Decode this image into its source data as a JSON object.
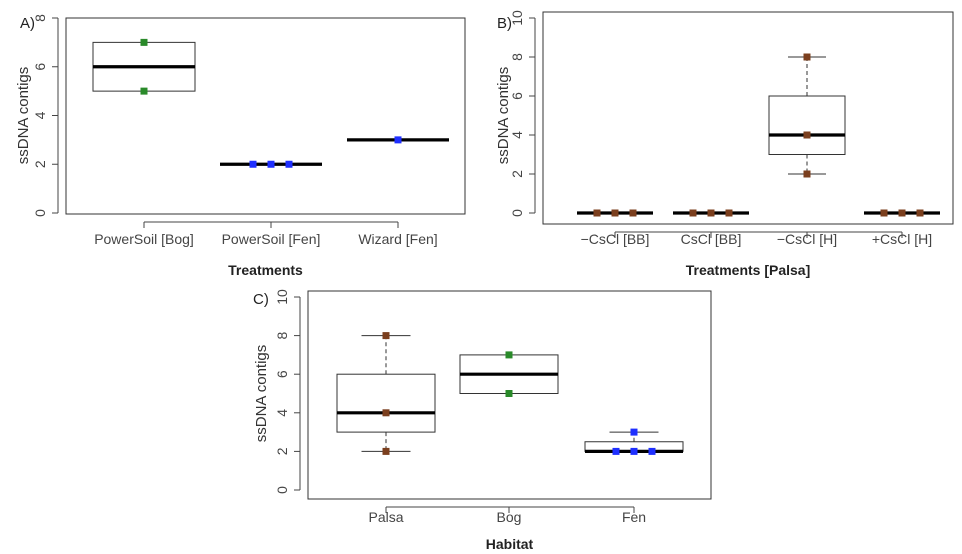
{
  "chart_data": [
    {
      "panel_label": "A)",
      "type": "box",
      "xlabel": "Treatments",
      "ylabel": "ssDNA contigs",
      "ylim": [
        0,
        8
      ],
      "yticks": [
        0,
        2,
        4,
        6,
        8
      ],
      "categories": [
        "PowerSoil [Bog]",
        "PowerSoil [Fen]",
        "Wizard [Fen]"
      ],
      "boxes": [
        {
          "min": 5,
          "q1": 5,
          "median": 6,
          "q3": 7,
          "max": 7
        },
        {
          "min": 2,
          "q1": 2,
          "median": 2,
          "q3": 2,
          "max": 2
        },
        {
          "min": 3,
          "q1": 3,
          "median": 3,
          "q3": 3,
          "max": 3
        }
      ],
      "points": [
        {
          "cat": 0,
          "y": 7,
          "color": "#2a8a2a"
        },
        {
          "cat": 0,
          "y": 5,
          "color": "#2a8a2a"
        },
        {
          "cat": 1,
          "y": 2,
          "color": "#1e2fff",
          "offset": -1
        },
        {
          "cat": 1,
          "y": 2,
          "color": "#1e2fff",
          "offset": 0
        },
        {
          "cat": 1,
          "y": 2,
          "color": "#1e2fff",
          "offset": 1
        },
        {
          "cat": 2,
          "y": 3,
          "color": "#1e2fff"
        }
      ]
    },
    {
      "panel_label": "B)",
      "type": "box",
      "xlabel": "Treatments [Palsa]",
      "ylabel": "ssDNA contigs",
      "ylim": [
        0,
        10
      ],
      "yticks": [
        0,
        2,
        4,
        6,
        8,
        10
      ],
      "categories": [
        "−CsCl [BB]",
        "CsCl [BB]",
        "−CsCl [H]",
        "+CsCl [H]"
      ],
      "boxes": [
        {
          "min": 0,
          "q1": 0,
          "median": 0,
          "q3": 0,
          "max": 0
        },
        {
          "min": 0,
          "q1": 0,
          "median": 0,
          "q3": 0,
          "max": 0
        },
        {
          "min": 2,
          "q1": 3,
          "median": 4,
          "q3": 6,
          "max": 8
        },
        {
          "min": 0,
          "q1": 0,
          "median": 0,
          "q3": 0,
          "max": 0
        }
      ],
      "points": [
        {
          "cat": 0,
          "y": 0,
          "color": "#7b3f1e",
          "offset": -1
        },
        {
          "cat": 0,
          "y": 0,
          "color": "#7b3f1e",
          "offset": 0
        },
        {
          "cat": 0,
          "y": 0,
          "color": "#7b3f1e",
          "offset": 1
        },
        {
          "cat": 1,
          "y": 0,
          "color": "#7b3f1e",
          "offset": -1
        },
        {
          "cat": 1,
          "y": 0,
          "color": "#7b3f1e",
          "offset": 0
        },
        {
          "cat": 1,
          "y": 0,
          "color": "#7b3f1e",
          "offset": 1
        },
        {
          "cat": 2,
          "y": 8,
          "color": "#7b3f1e"
        },
        {
          "cat": 2,
          "y": 4,
          "color": "#7b3f1e"
        },
        {
          "cat": 2,
          "y": 2,
          "color": "#7b3f1e"
        },
        {
          "cat": 3,
          "y": 0,
          "color": "#7b3f1e",
          "offset": -1
        },
        {
          "cat": 3,
          "y": 0,
          "color": "#7b3f1e",
          "offset": 0
        },
        {
          "cat": 3,
          "y": 0,
          "color": "#7b3f1e",
          "offset": 1
        }
      ]
    },
    {
      "panel_label": "C)",
      "type": "box",
      "xlabel": "Habitat",
      "ylabel": "ssDNA contigs",
      "ylim": [
        0,
        10
      ],
      "yticks": [
        0,
        2,
        4,
        6,
        8,
        10
      ],
      "categories": [
        "Palsa",
        "Bog",
        "Fen"
      ],
      "boxes": [
        {
          "min": 2,
          "q1": 3,
          "median": 4,
          "q3": 6,
          "max": 8
        },
        {
          "min": 5,
          "q1": 5,
          "median": 6,
          "q3": 7,
          "max": 7
        },
        {
          "min": 2,
          "q1": 2,
          "median": 2,
          "q3": 2.5,
          "max": 3
        }
      ],
      "points": [
        {
          "cat": 0,
          "y": 8,
          "color": "#7b3f1e"
        },
        {
          "cat": 0,
          "y": 4,
          "color": "#7b3f1e"
        },
        {
          "cat": 0,
          "y": 2,
          "color": "#7b3f1e"
        },
        {
          "cat": 1,
          "y": 7,
          "color": "#2a8a2a"
        },
        {
          "cat": 1,
          "y": 5,
          "color": "#2a8a2a"
        },
        {
          "cat": 2,
          "y": 3,
          "color": "#1e2fff"
        },
        {
          "cat": 2,
          "y": 2,
          "color": "#1e2fff",
          "offset": -1
        },
        {
          "cat": 2,
          "y": 2,
          "color": "#1e2fff",
          "offset": 0
        },
        {
          "cat": 2,
          "y": 2,
          "color": "#1e2fff",
          "offset": 1
        }
      ]
    }
  ]
}
